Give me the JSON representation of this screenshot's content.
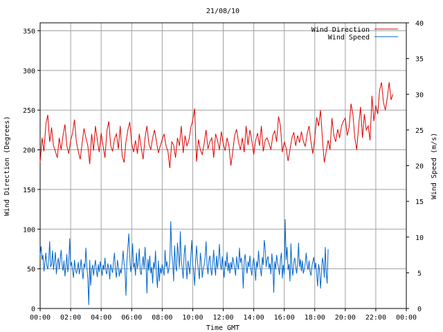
{
  "chart_data": {
    "type": "line",
    "title": "21/08/10",
    "xlabel": "Time GMT",
    "ylabel_left": "Wind Direction (Degrees)",
    "ylabel_right": "Wind Speed (m/s)",
    "x_ticks": [
      "00:00",
      "02:00",
      "04:00",
      "06:00",
      "08:00",
      "10:00",
      "12:00",
      "14:00",
      "16:00",
      "18:00",
      "20:00",
      "22:00",
      "00:00"
    ],
    "x_range_hours": [
      0,
      24
    ],
    "y_left": {
      "range": [
        0,
        360
      ],
      "ticks": [
        "0",
        "50",
        "100",
        "150",
        "200",
        "250",
        "300",
        "350"
      ]
    },
    "y_right": {
      "range": [
        0,
        40
      ],
      "ticks": [
        "0",
        "5",
        "10",
        "15",
        "20",
        "25",
        "30",
        "35",
        "40"
      ]
    },
    "grid": true,
    "legend_position": "top-right",
    "series": [
      {
        "name": "Wind Direction",
        "axis": "left",
        "color": "#dd0000",
        "x_step_hours": 0.125,
        "values": [
          184,
          215,
          198,
          232,
          244,
          210,
          228,
          205,
          198,
          190,
          215,
          200,
          218,
          232,
          205,
          195,
          212,
          221,
          238,
          210,
          198,
          188,
          208,
          227,
          215,
          205,
          182,
          220,
          199,
          230,
          212,
          197,
          221,
          205,
          190,
          224,
          236,
          205,
          198,
          214,
          220,
          201,
          230,
          192,
          184,
          210,
          225,
          235,
          208,
          197,
          212,
          195,
          220,
          203,
          188,
          215,
          230,
          208,
          200,
          215,
          225,
          210,
          196,
          205,
          213,
          220,
          205,
          198,
          177,
          210,
          206,
          190,
          215,
          205,
          230,
          196,
          218,
          205,
          212,
          228,
          237,
          252,
          185,
          213,
          200,
          194,
          208,
          225,
          201,
          210,
          215,
          190,
          220,
          212,
          200,
          223,
          208,
          199,
          215,
          205,
          180,
          198,
          218,
          226,
          210,
          200,
          215,
          197,
          230,
          206,
          225,
          211,
          194,
          212,
          221,
          205,
          230,
          198,
          212,
          215,
          208,
          200,
          218,
          224,
          210,
          242,
          230,
          197,
          210,
          202,
          186,
          200,
          215,
          222,
          205,
          218,
          209,
          223,
          211,
          204,
          220,
          230,
          210,
          195,
          215,
          241,
          230,
          250,
          214,
          184,
          198,
          212,
          200,
          240,
          218,
          210,
          226,
          215,
          230,
          236,
          240,
          218,
          228,
          258,
          245,
          215,
          200,
          230,
          254,
          215,
          245,
          225,
          230,
          212,
          268,
          236,
          256,
          245,
          275,
          285,
          260,
          250,
          265,
          285,
          263,
          270
        ]
      },
      {
        "name": "Wind Speed",
        "axis": "right",
        "color": "#0066cc",
        "x_step_hours": 0.0625,
        "values": [
          7.5,
          8.7,
          6.8,
          7.5,
          5.2,
          6.4,
          7.8,
          6.0,
          5.5,
          6.9,
          9.4,
          5.8,
          6.2,
          8.1,
          5.4,
          6.6,
          7.9,
          4.8,
          6.2,
          7.1,
          5.5,
          6.8,
          8.2,
          6.1,
          5.3,
          6.7,
          4.5,
          5.9,
          7.6,
          5.1,
          6.3,
          9.8,
          5.9,
          6.5,
          5.2,
          4.3,
          6.8,
          5.5,
          4.9,
          5.4,
          6.5,
          4.8,
          5.6,
          6.9,
          5.2,
          4.1,
          6.3,
          5.7,
          8.5,
          5.8,
          4.2,
          0.5,
          6.8,
          3.2,
          5.4,
          6.1,
          4.6,
          5.9,
          6.8,
          5.3,
          4.4,
          6.2,
          5.1,
          6.6,
          5.6,
          4.6,
          6.1,
          5.4,
          7.1,
          5.2,
          4.8,
          6.3,
          5.6,
          4.1,
          6.2,
          5.5,
          5.0,
          6.7,
          7.8,
          5.2,
          4.3,
          6.8,
          5.9,
          4.5,
          5.5,
          4.9,
          6.4,
          8.1,
          6.3,
          5.2,
          1.8,
          6.7,
          8.6,
          10.5,
          7.2,
          5.1,
          6.3,
          9.1,
          5.7,
          6.4,
          4.6,
          7.8,
          5.6,
          6.5,
          8.4,
          5.1,
          4.7,
          6.2,
          7.3,
          5.5,
          8.6,
          6.4,
          2.1,
          6.9,
          5.3,
          7.4,
          4.9,
          5.8,
          3.5,
          6.5,
          5.6,
          8.1,
          4.6,
          2.9,
          6.7,
          3.8,
          5.7,
          4.9,
          6.2,
          5.4,
          4.6,
          8.2,
          5.8,
          6.6,
          4.9,
          5.6,
          6.7,
          12.2,
          7.6,
          6.5,
          3.8,
          8.8,
          6.1,
          5.2,
          9.2,
          7.5,
          5.7,
          10.8,
          6.8,
          5.6,
          4.2,
          7.5,
          8.9,
          6.1,
          4.1,
          6.7,
          5.9,
          4.8,
          7.3,
          9.6,
          6.1,
          5.3,
          3.2,
          6.7,
          8.8,
          6.5,
          5.4,
          4.1,
          7.8,
          6.6,
          4.3,
          5.6,
          6.1,
          7.2,
          9.4,
          6.2,
          4.8,
          6.8,
          7.4,
          5.5,
          4.6,
          6.3,
          8.2,
          5.9,
          4.6,
          7.4,
          5.6,
          6.8,
          9.0,
          6.2,
          5.4,
          7.3,
          5.6,
          4.3,
          6.7,
          5.8,
          7.9,
          5.2,
          6.4,
          4.9,
          6.5,
          5.5,
          7.2,
          6.4,
          5.6,
          4.6,
          7.3,
          6.1,
          5.5,
          8.5,
          6.4,
          7.1,
          5.8,
          2.8,
          6.7,
          7.6,
          5.9,
          4.9,
          6.6,
          5.8,
          7.4,
          5.5,
          4.6,
          6.4,
          7.1,
          5.8,
          3.9,
          6.6,
          5.7,
          8.1,
          6.3,
          5.5,
          4.5,
          7.2,
          6.1,
          9.6,
          8.4,
          5.8,
          6.9,
          7.3,
          5.6,
          6.3,
          4.8,
          7.7,
          6.1,
          2.2,
          6.6,
          5.5,
          7.5,
          6.4,
          5.7,
          4.7,
          6.9,
          7.8,
          4.2,
          6.1,
          4.8,
          12.5,
          6.8,
          8.6,
          5.4,
          6.2,
          3.8,
          9.1,
          5.8,
          4.6,
          6.5,
          7.1,
          5.9,
          4.9,
          6.3,
          9.2,
          5.8,
          6.9,
          5.2,
          6.7,
          4.9,
          5.5,
          6.3,
          7.8,
          6.1,
          5.4,
          6.7,
          5.2,
          4.6,
          5.9,
          6.6,
          7.2,
          5.5,
          6.4,
          4.8,
          3.1,
          6.2,
          5.4,
          2.8,
          4.9,
          7.1,
          6.4,
          4.3,
          8.6,
          5.1,
          3.5,
          8.3
        ]
      }
    ]
  }
}
